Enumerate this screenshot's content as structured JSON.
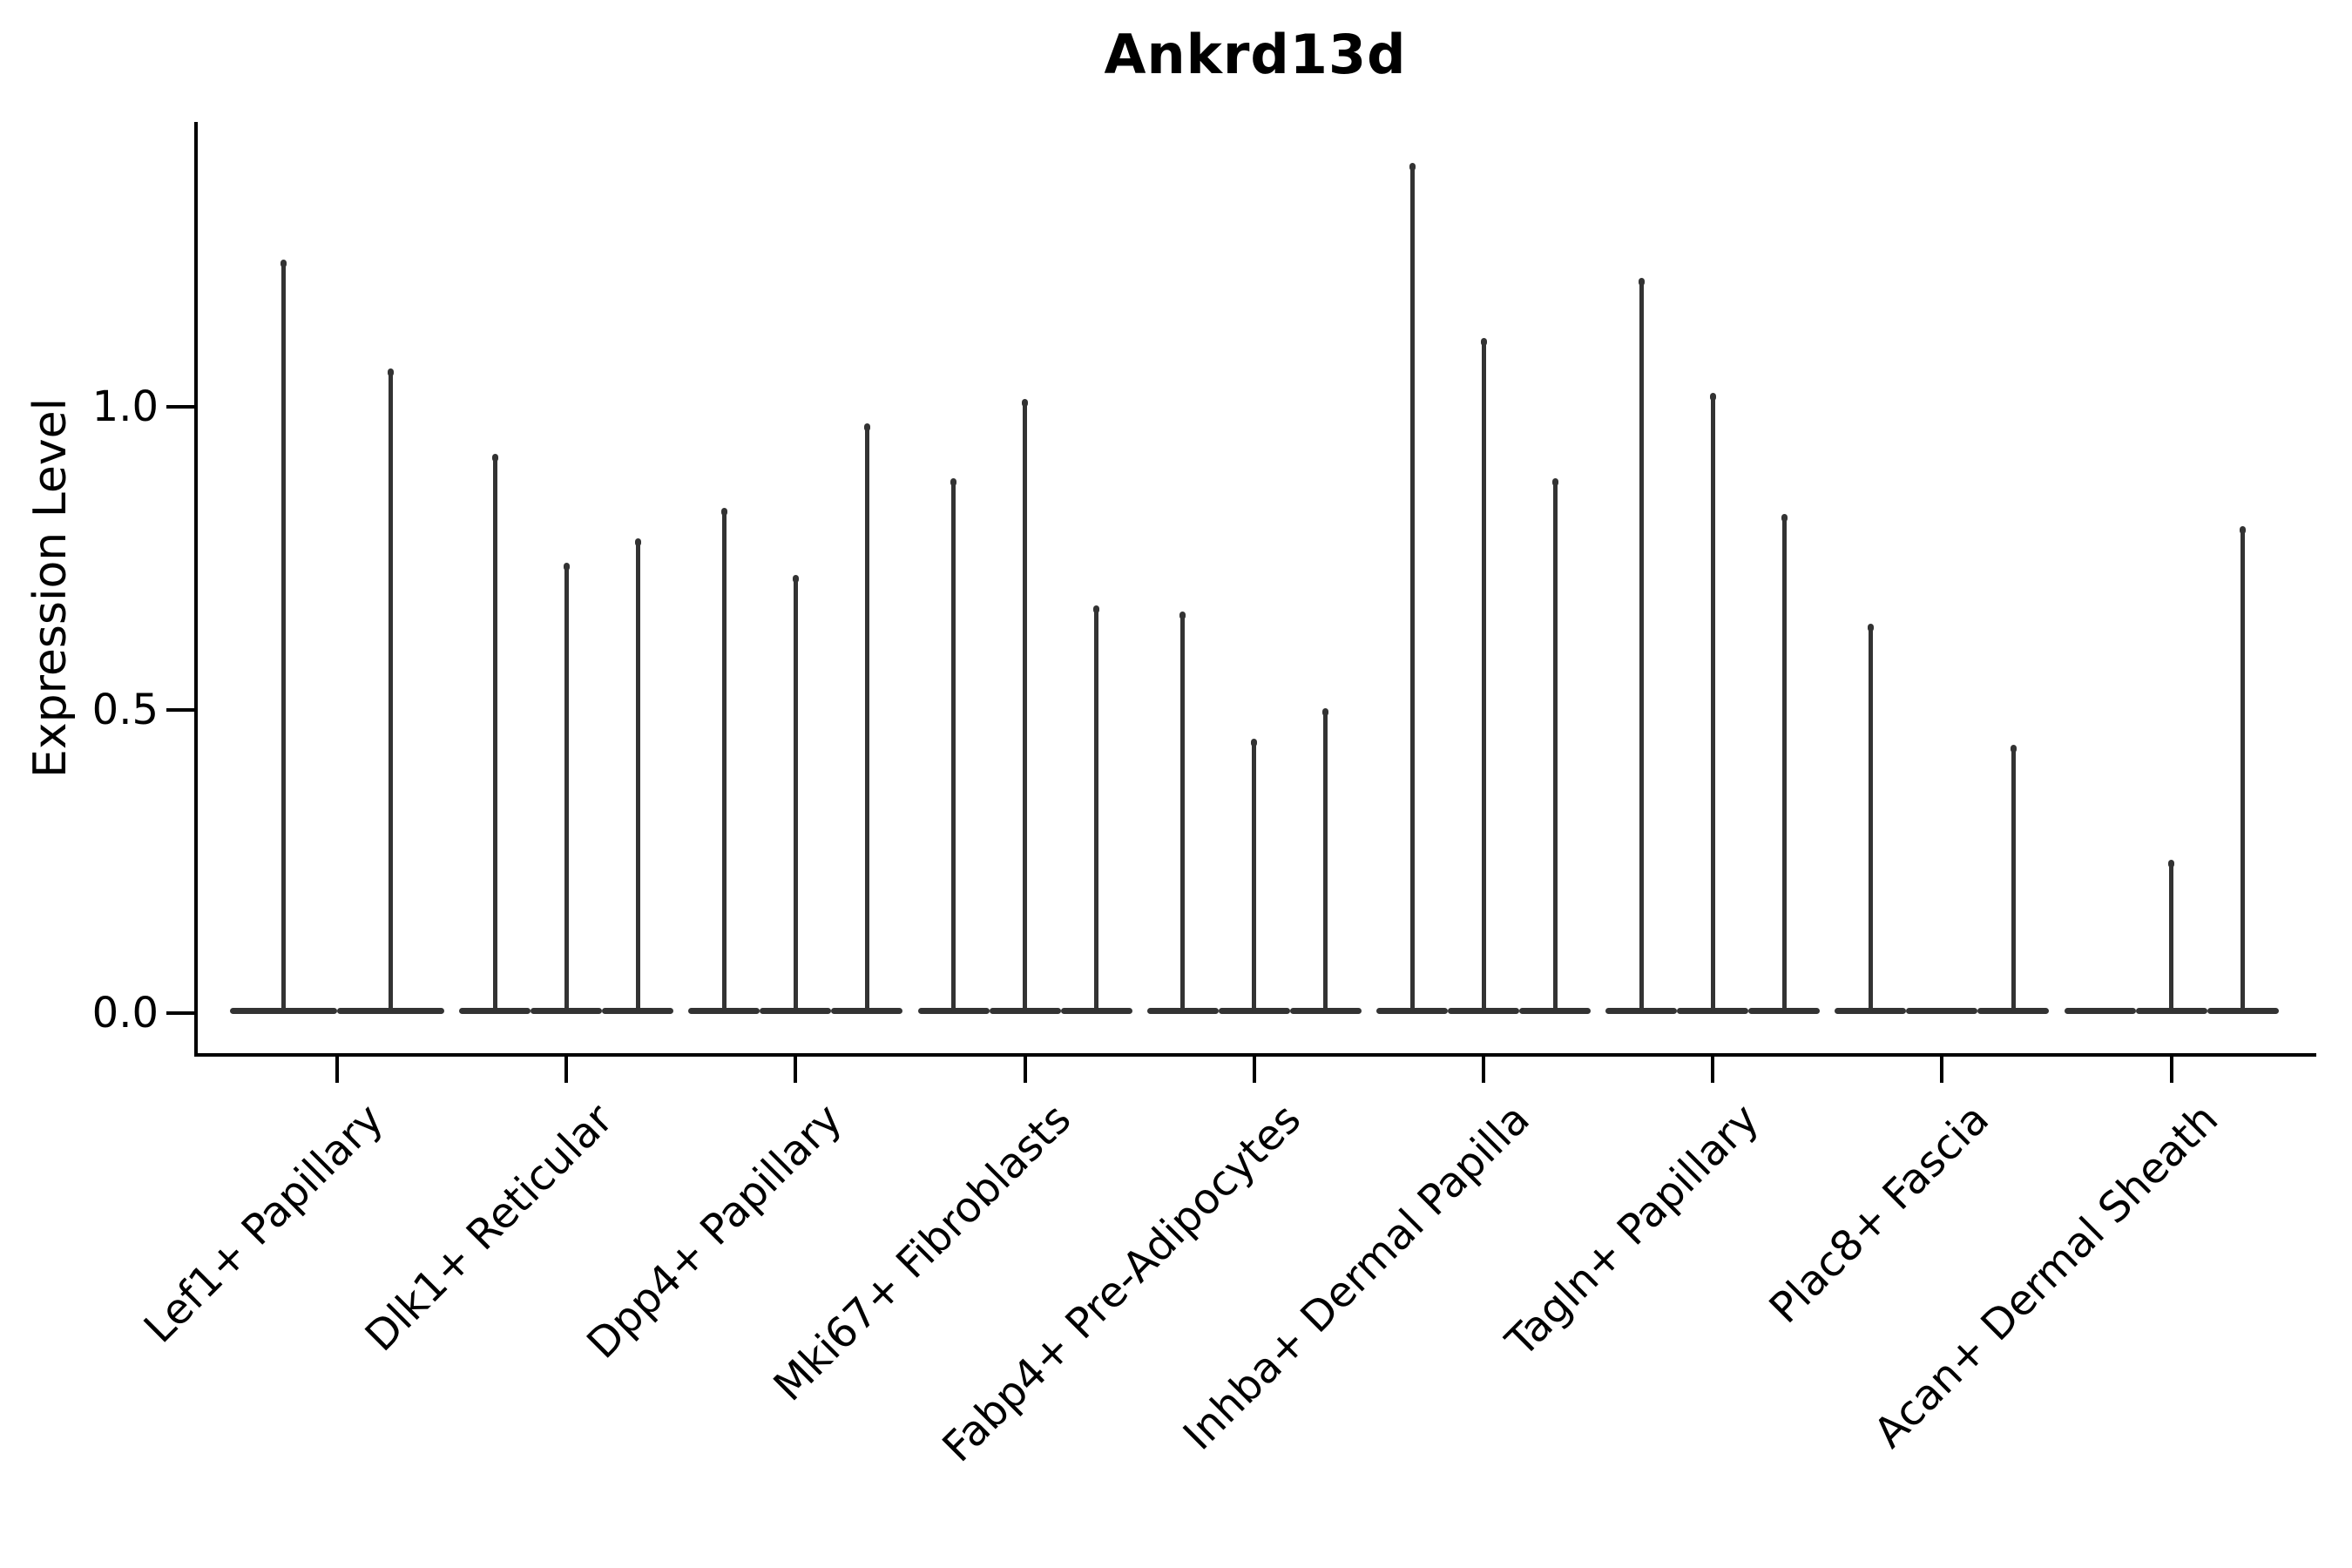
{
  "title": "Ankrd13d",
  "axes": {
    "ylabel": "Expression Level",
    "yticks": [
      {
        "label": "0.0",
        "value": 0.0
      },
      {
        "label": "0.5",
        "value": 0.5
      },
      {
        "label": "1.0",
        "value": 1.0
      }
    ]
  },
  "chart_data": {
    "type": "violin",
    "title": "Ankrd13d",
    "xlabel": "",
    "ylabel": "Expression Level",
    "ylim": [
      -0.07,
      1.47
    ],
    "yticks": [
      0.0,
      0.5,
      1.0
    ],
    "grid": false,
    "legend": "none",
    "violin_color": "#333333",
    "axis_color": "#000000",
    "description": "Violin plot of Ankrd13d expression; each cell-type group contains 2-3 very thin violins (spikes) rising from a flat base at 0; value listed is the top (max expression) of each violin, 0 = flat violin with no spike",
    "categories": [
      "Lef1+ Papillary",
      "Dlk1+ Reticular",
      "Dpp4+ Papillary",
      "Mki67+ Fibroblasts",
      "Fabp4+ Pre-Adipocytes",
      "Inhba+ Dermal Papilla",
      "Tagln+ Papillary",
      "Plac8+ Fascia",
      "Acan+ Dermal Sheath"
    ],
    "groups": [
      {
        "category": "Lef1+ Papillary",
        "violin_max_values": [
          1.24,
          1.06
        ]
      },
      {
        "category": "Dlk1+ Reticular",
        "violin_max_values": [
          0.92,
          0.74,
          0.78
        ]
      },
      {
        "category": "Dpp4+ Papillary",
        "violin_max_values": [
          0.83,
          0.72,
          0.97
        ]
      },
      {
        "category": "Mki67+ Fibroblasts",
        "violin_max_values": [
          0.88,
          1.01,
          0.67
        ]
      },
      {
        "category": "Fabp4+ Pre-Adipocytes",
        "violin_max_values": [
          0.66,
          0.45,
          0.5
        ]
      },
      {
        "category": "Inhba+ Dermal Papilla",
        "violin_max_values": [
          1.4,
          1.11,
          0.88
        ]
      },
      {
        "category": "Tagln+ Papillary",
        "violin_max_values": [
          1.21,
          1.02,
          0.82
        ]
      },
      {
        "category": "Plac8+ Fascia",
        "violin_max_values": [
          0.64,
          0.0,
          0.44
        ]
      },
      {
        "category": "Acan+ Dermal Sheath",
        "violin_max_values": [
          0.0,
          0.25,
          0.8
        ]
      }
    ]
  }
}
